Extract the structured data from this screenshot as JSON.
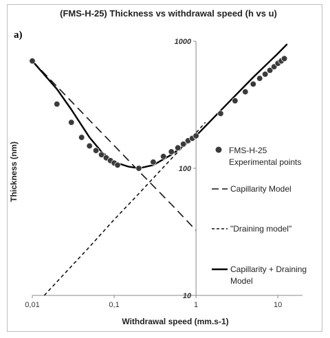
{
  "chart_data": {
    "type": "line",
    "panel_label": "a)",
    "title": "(FMS-H-25) Thickness vs withdrawal speed (h vs  u)",
    "xlabel": "Withdrawal speed (mm.s-1)",
    "ylabel": "Thickness (nm)",
    "xscale": "log",
    "yscale": "log",
    "xlim": [
      0.01,
      20
    ],
    "ylim": [
      10,
      1000
    ],
    "x_tick_labels": [
      "0,01",
      "0,1",
      "1",
      "10"
    ],
    "x_tick_values": [
      0.01,
      0.1,
      1,
      10
    ],
    "y_tick_labels": [
      "10",
      "100",
      "1000"
    ],
    "y_tick_values": [
      10,
      100,
      1000
    ],
    "grid": false,
    "legend_position": "right",
    "series": [
      {
        "name": "FMS-H-25 Experimental points",
        "kind": "scatter",
        "color": "#111111",
        "x": [
          0.01,
          0.02,
          0.03,
          0.04,
          0.05,
          0.06,
          0.07,
          0.08,
          0.09,
          0.1,
          0.11,
          0.2,
          0.3,
          0.4,
          0.5,
          0.6,
          0.7,
          0.8,
          0.9,
          1.0,
          2.0,
          3.0,
          4.0,
          5.0,
          6.0,
          7.0,
          8.0,
          9.0,
          10.0,
          11.0,
          12.0
        ],
        "y": [
          700,
          320,
          230,
          175,
          150,
          138,
          128,
          121,
          115,
          110,
          106,
          100,
          112,
          124,
          135,
          145,
          155,
          165,
          172,
          180,
          270,
          340,
          400,
          460,
          510,
          550,
          590,
          630,
          670,
          700,
          730
        ]
      },
      {
        "name": "Capillarity Model",
        "kind": "line",
        "dash": "long",
        "color": "#111111",
        "x": [
          0.01,
          0.02,
          0.05,
          0.1,
          0.2,
          0.5,
          1.0
        ],
        "y": [
          700,
          441,
          239,
          151,
          95,
          52,
          32.5
        ]
      },
      {
        "name": "\"Draining model\"",
        "kind": "line",
        "dash": "short",
        "color": "#111111",
        "x": [
          0.014,
          0.02,
          0.05,
          0.1,
          0.2,
          0.5,
          1.0,
          1.3
        ],
        "y": [
          10,
          12.8,
          24.1,
          39.5,
          63.2,
          119,
          190,
          230
        ]
      },
      {
        "name": "Capillarity + Draining Model",
        "kind": "line",
        "dash": "solid",
        "color": "#000000",
        "x": [
          0.01,
          0.02,
          0.03,
          0.05,
          0.07,
          0.1,
          0.15,
          0.2,
          0.3,
          0.5,
          0.7,
          1.0,
          2.0,
          5.0,
          10.0,
          13.0
        ],
        "y": [
          700,
          420,
          290,
          175,
          135,
          112,
          103,
          100,
          106,
          128,
          150,
          180,
          285,
          520,
          800,
          950
        ]
      }
    ]
  }
}
